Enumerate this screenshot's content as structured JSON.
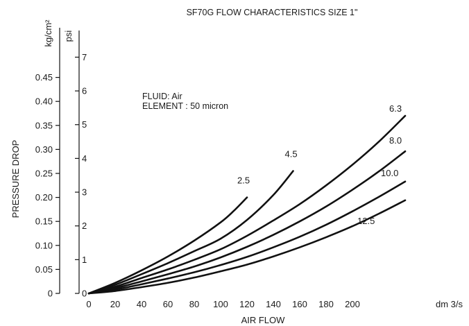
{
  "chart_data": {
    "type": "line",
    "title": "SF70G FLOW CHARACTERISTICS SIZE 1\"",
    "xlabel": "AIR FLOW",
    "x_unit": "dm 3/s",
    "ylabel": "PRESSURE DROP",
    "y_unit_primary": "kg/cm²",
    "y_unit_secondary": "psi",
    "xlim": [
      0,
      240
    ],
    "ylim": [
      0,
      0.5
    ],
    "x_ticks": [
      "0",
      "20",
      "40",
      "60",
      "80",
      "100",
      "120",
      "140",
      "160",
      "180",
      "200"
    ],
    "y_ticks": [
      "0",
      "0.05",
      "0.10",
      "0.15",
      "0.20",
      "0.25",
      "0.30",
      "0.35",
      "0.40",
      "0.45"
    ],
    "psi_ticks": [
      "0",
      "1",
      "2",
      "3",
      "4",
      "5",
      "6",
      "7"
    ],
    "grid": false,
    "annotations": [
      "FLUID: Air",
      "ELEMENT : 50 micron"
    ],
    "series": [
      {
        "name": "2.5",
        "x": [
          0,
          20,
          40,
          60,
          80,
          100,
          110,
          120
        ],
        "y": [
          0,
          0.022,
          0.048,
          0.077,
          0.11,
          0.148,
          0.172,
          0.2
        ]
      },
      {
        "name": "4.5",
        "x": [
          0,
          20,
          40,
          60,
          80,
          100,
          120,
          140,
          155
        ],
        "y": [
          0,
          0.018,
          0.04,
          0.063,
          0.088,
          0.114,
          0.153,
          0.205,
          0.255
        ]
      },
      {
        "name": "6.3",
        "x": [
          0,
          20,
          40,
          60,
          80,
          100,
          120,
          140,
          160,
          180,
          200,
          220,
          240
        ],
        "y": [
          0,
          0.014,
          0.032,
          0.05,
          0.07,
          0.092,
          0.12,
          0.152,
          0.186,
          0.225,
          0.268,
          0.316,
          0.37
        ]
      },
      {
        "name": "8.0",
        "x": [
          0,
          20,
          40,
          60,
          80,
          100,
          120,
          140,
          160,
          180,
          200,
          220,
          240
        ],
        "y": [
          0,
          0.011,
          0.025,
          0.04,
          0.056,
          0.075,
          0.097,
          0.122,
          0.15,
          0.181,
          0.216,
          0.254,
          0.296
        ]
      },
      {
        "name": "10.0",
        "x": [
          0,
          20,
          40,
          60,
          80,
          100,
          120,
          140,
          160,
          180,
          200,
          220,
          240
        ],
        "y": [
          0,
          0.008,
          0.019,
          0.031,
          0.044,
          0.059,
          0.076,
          0.096,
          0.118,
          0.143,
          0.171,
          0.201,
          0.233
        ]
      },
      {
        "name": "12.5",
        "x": [
          0,
          20,
          40,
          60,
          80,
          100,
          120,
          140,
          160,
          180,
          200,
          220,
          240
        ],
        "y": [
          0,
          0.005,
          0.013,
          0.022,
          0.033,
          0.046,
          0.06,
          0.077,
          0.096,
          0.117,
          0.14,
          0.166,
          0.194
        ]
      }
    ]
  }
}
